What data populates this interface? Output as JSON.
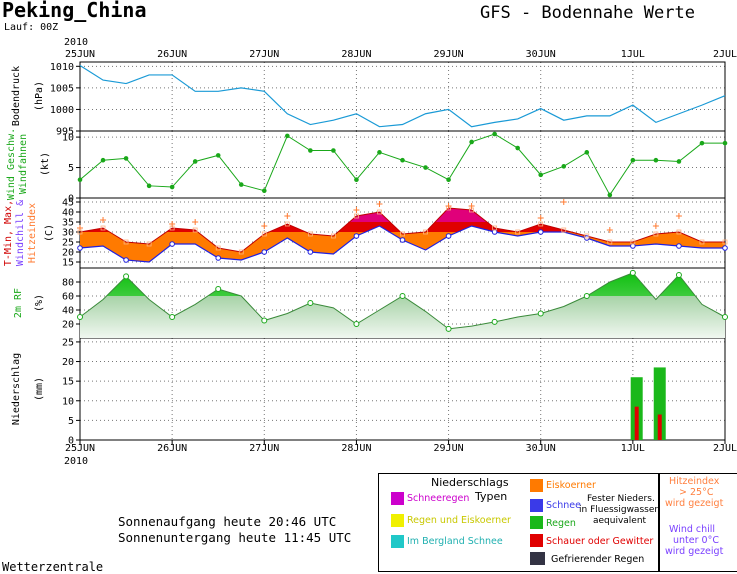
{
  "header": {
    "location": "Peking_China",
    "model_title": "GFS - Bodennahe Werte",
    "run": "Lauf: 00Z",
    "year_top": "2010",
    "year_bottom": "2010"
  },
  "x_axis": {
    "labels": [
      "25JUN",
      "26JUN",
      "27JUN",
      "28JUN",
      "29JUN",
      "30JUN",
      "1JUL",
      "2JUL"
    ]
  },
  "chart_data": [
    {
      "type": "line",
      "panel": "pressure",
      "ylabel_1": "Bodendruck",
      "ylabel_2": "(hPa)",
      "yticks": [
        995,
        1000,
        1005,
        1010
      ],
      "ylim": [
        995,
        1011
      ],
      "color": "#1a9ad6",
      "x_hours": [
        0,
        6,
        12,
        18,
        24,
        30,
        36,
        42,
        48,
        54,
        60,
        66,
        72,
        78,
        84,
        90,
        96,
        102,
        108,
        114,
        120,
        126,
        132,
        138,
        144,
        150,
        156,
        162,
        168
      ],
      "values": [
        1010.2,
        1006.8,
        1006,
        1008,
        1008,
        1004.2,
        1004.2,
        1005,
        1004.2,
        999,
        996.5,
        997.5,
        999,
        996,
        996.5,
        999,
        1000,
        996,
        997,
        997.8,
        1000.2,
        997.5,
        998.5,
        998.5,
        1001,
        997,
        999,
        1001,
        1003.2
      ]
    },
    {
      "type": "line",
      "panel": "wind",
      "ylabel_1": "Wind Geschw.",
      "ylabel_2": "Windfahnen",
      "ylabel_3": "(kt)",
      "yticks": [
        0,
        5,
        10
      ],
      "ylim": [
        0,
        11
      ],
      "color": "#1aa81a",
      "x_hours": [
        0,
        6,
        12,
        18,
        24,
        30,
        36,
        42,
        48,
        54,
        60,
        66,
        72,
        78,
        84,
        90,
        96,
        102,
        108,
        114,
        120,
        126,
        132,
        138,
        144,
        150,
        156,
        162,
        168
      ],
      "values": [
        3,
        6.2,
        6.5,
        2,
        1.8,
        6,
        7,
        2.2,
        1.2,
        10.2,
        7.8,
        7.8,
        3,
        7.5,
        6.2,
        5,
        3,
        9.2,
        10.5,
        8.2,
        3.8,
        5.2,
        7.5,
        0.5,
        6.2,
        6.2,
        6,
        9,
        9
      ]
    },
    {
      "type": "area",
      "panel": "temperature",
      "ylabel_1": "T-Min, Max,",
      "ylabel_2": "Windchill &",
      "ylabel_3": "Hitzeindex",
      "ylabel_4": "(C)",
      "yticks": [
        15,
        20,
        25,
        30,
        35,
        40,
        45
      ],
      "ylim": [
        12,
        47
      ],
      "colors": {
        "min_line": "#2020e0",
        "max_fill": "#e00000",
        "high_fill": "#e0007a",
        "lower_fill": "#ff7a00",
        "heat_index": "#ff7a30"
      },
      "x_hours": [
        0,
        6,
        12,
        18,
        24,
        30,
        36,
        42,
        48,
        54,
        60,
        66,
        72,
        78,
        84,
        90,
        96,
        102,
        108,
        114,
        120,
        126,
        132,
        138,
        144,
        150,
        156,
        162,
        168
      ],
      "tmin": [
        22,
        23,
        16,
        15,
        24,
        24,
        17,
        16,
        20,
        27,
        20,
        19,
        28,
        33,
        26,
        21,
        28,
        33,
        30,
        28,
        30,
        30,
        27,
        23,
        23,
        24,
        23,
        22,
        22
      ],
      "tmax": [
        30,
        32,
        25,
        24,
        32,
        31,
        22,
        20,
        29,
        34,
        29,
        28,
        38,
        40,
        29,
        30,
        42,
        41,
        32,
        30,
        34,
        31,
        28,
        25,
        25,
        29,
        30,
        25,
        25
      ],
      "heat_index": [
        32,
        36,
        null,
        null,
        34,
        35,
        null,
        null,
        33,
        38,
        null,
        null,
        41,
        44,
        null,
        null,
        43,
        43,
        null,
        null,
        37,
        45,
        null,
        31,
        null,
        33,
        38,
        null,
        null
      ]
    },
    {
      "type": "area",
      "panel": "humidity",
      "ylabel_1": "2m RF",
      "ylabel_2": "(%)",
      "yticks": [
        20,
        40,
        60,
        80
      ],
      "ylim": [
        0,
        100
      ],
      "color": "#1aa81a",
      "x_hours": [
        0,
        6,
        12,
        18,
        24,
        30,
        36,
        42,
        48,
        54,
        60,
        66,
        72,
        78,
        84,
        90,
        96,
        102,
        108,
        114,
        120,
        126,
        132,
        138,
        144,
        150,
        156,
        162,
        168
      ],
      "values": [
        30,
        55,
        88,
        55,
        30,
        48,
        70,
        60,
        25,
        35,
        50,
        43,
        20,
        40,
        60,
        38,
        13,
        17,
        23,
        30,
        35,
        45,
        60,
        80,
        93,
        55,
        90,
        48,
        30
      ]
    },
    {
      "type": "bar",
      "panel": "precipitation",
      "ylabel_1": "Niederschlag",
      "ylabel_2": "(mm)",
      "yticks": [
        0,
        5,
        10,
        15,
        20,
        25
      ],
      "ylim": [
        0,
        26
      ],
      "bars": [
        {
          "x_hour": 145,
          "total": 16,
          "convective": 8.5
        },
        {
          "x_hour": 151,
          "total": 18.5,
          "convective": 6.5
        }
      ]
    }
  ],
  "sun": {
    "sunrise": "Sonnenaufgang heute 20:46 UTC",
    "sunset": "Sonnenuntergang heute 11:45 UTC"
  },
  "legend": {
    "title_1": "Niederschlags",
    "title_2": "Typen",
    "items": {
      "schneeregen": "Schneeregen",
      "regen_eiskoerner": "Regen und Eiskoerner",
      "bergland_schnee": "Im Bergland Schnee",
      "eiskoerner": "Eiskoerner",
      "schnee": "Schnee",
      "fester_1": "Fester Nieders.",
      "fester_2": "in Fluessigwasser",
      "fester_3": "aequivalent",
      "regen": "Regen",
      "schauer": "Schauer oder Gewitter",
      "gefrierender": "Gefrierender Regen"
    },
    "colors": {
      "schneeregen": "#cc00cc",
      "regen_eiskoerner": "#f0f000",
      "bergland_schnee": "#20c8c8",
      "eiskoerner": "#ff7a00",
      "schnee": "#3a3ae8",
      "regen": "#1ab81a",
      "schauer": "#e00000",
      "gefrierender": "#333344"
    },
    "hitze": [
      "Hitzeindex",
      "> 25°C",
      "wird gezeigt"
    ],
    "windchill": [
      "Wind chill",
      "unter 0°C",
      "wird gezeigt"
    ]
  },
  "footer": "Wetterzentrale"
}
